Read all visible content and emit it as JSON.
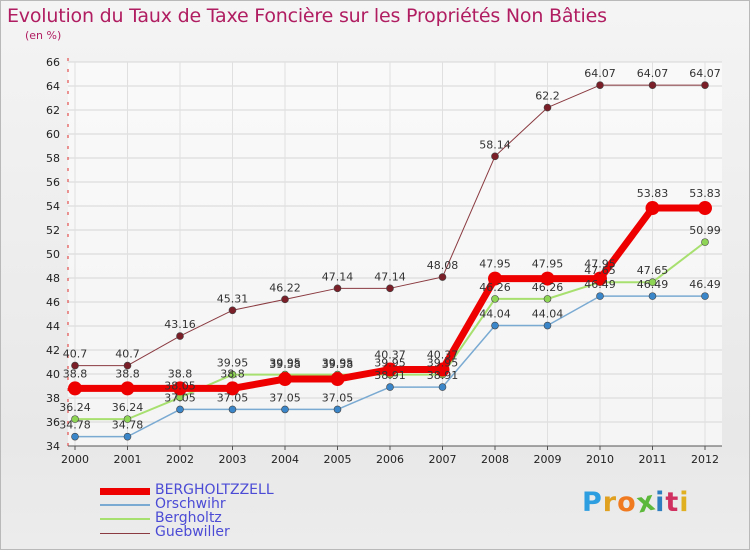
{
  "title": "Evolution du Taux de Taxe Foncière sur les Propriétés Non Bâties",
  "unit": "(en %)",
  "logo": {
    "text": "Proxiti",
    "letter_colors": [
      "#2d9ee0",
      "#e0a020",
      "#f07a20",
      "#5cb83a",
      "#2d7ec0",
      "#d03060",
      "#e0b020"
    ]
  },
  "chart_data": {
    "type": "line",
    "title": "Evolution du Taux de Taxe Foncière sur les Propriétés Non Bâties",
    "ylabel": "(en %)",
    "xlabel": "",
    "ylim": [
      34,
      66
    ],
    "y_ticks": [
      34,
      36,
      38,
      40,
      42,
      44,
      46,
      48,
      50,
      52,
      54,
      56,
      58,
      60,
      62,
      64,
      66
    ],
    "categories": [
      "2000",
      "2001",
      "2002",
      "2003",
      "2004",
      "2005",
      "2006",
      "2007",
      "2008",
      "2009",
      "2010",
      "2011",
      "2012"
    ],
    "legend_position": "bottom",
    "series": [
      {
        "name": "Guebwiller",
        "color": "#7a1e28",
        "line_color": "#8a3a40",
        "width": 1,
        "marker_r": 3.5,
        "values": [
          40.7,
          40.7,
          43.16,
          45.31,
          46.22,
          47.14,
          47.14,
          48.08,
          58.14,
          62.2,
          64.07,
          64.07,
          64.07
        ],
        "labels": [
          "40.7",
          "40.7",
          "43.16",
          "45.31",
          "46.22",
          "47.14",
          "47.14",
          "48.08",
          "58.14",
          "62.2",
          "64.07",
          "64.07",
          "64.07"
        ]
      },
      {
        "name": "Bergholtz",
        "color": "#8ed455",
        "line_color": "#a8e070",
        "width": 2,
        "marker_r": 3.5,
        "values": [
          36.24,
          36.24,
          38.05,
          39.95,
          39.95,
          39.95,
          39.95,
          39.95,
          46.26,
          46.26,
          47.65,
          47.65,
          50.99
        ],
        "labels": [
          "36.24",
          "36.24",
          "38.05",
          "39.95",
          "39.95",
          "39.95",
          "39.95",
          "39.95",
          "46.26",
          "46.26",
          "47.65",
          "47.65",
          "50.99"
        ]
      },
      {
        "name": "Orschwihr",
        "color": "#3a86c8",
        "line_color": "#7aaad2",
        "width": 1.5,
        "marker_r": 3.5,
        "values": [
          34.78,
          34.78,
          37.05,
          37.05,
          37.05,
          37.05,
          38.91,
          38.91,
          44.04,
          44.04,
          46.49,
          46.49,
          46.49
        ],
        "labels": [
          "34.78",
          "34.78",
          "37.05",
          "37.05",
          "37.05",
          "37.05",
          "38.91",
          "38.91",
          "44.04",
          "44.04",
          "46.49",
          "46.49",
          "46.49"
        ]
      },
      {
        "name": "BERGHOLTZZELL",
        "color": "#ee0000",
        "line_color": "#ee0000",
        "width": 7,
        "marker_r": 7,
        "values": [
          38.8,
          38.8,
          38.8,
          38.8,
          39.58,
          39.58,
          40.37,
          40.37,
          47.95,
          47.95,
          47.95,
          53.83,
          53.83
        ],
        "labels": [
          "38.8",
          "38.8",
          "38.8",
          "38.8",
          "39.58",
          "39.58",
          "40.37",
          "40.37",
          "47.95",
          "47.95",
          "47.95",
          "53.83",
          "53.83"
        ]
      }
    ]
  },
  "legend": [
    {
      "name": "BERGHOLTZZELL",
      "color": "#ee0000",
      "thickness": 7
    },
    {
      "name": "Orschwihr",
      "color": "#7aaad2",
      "thickness": 2
    },
    {
      "name": "Bergholtz",
      "color": "#a8e070",
      "thickness": 2
    },
    {
      "name": "Guebwiller",
      "color": "#8a3a40",
      "thickness": 1
    }
  ]
}
